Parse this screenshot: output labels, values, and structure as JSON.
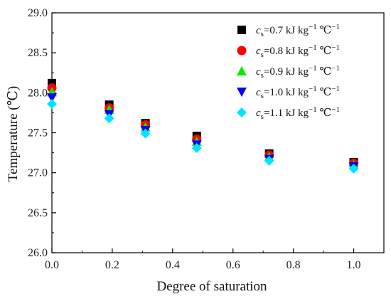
{
  "chart_data": {
    "type": "scatter",
    "title": "",
    "xlabel": "Degree of saturation",
    "ylabel": "Temperature (℃)",
    "xlim": [
      0.0,
      1.1
    ],
    "ylim": [
      26.0,
      29.0
    ],
    "x_ticks": [
      "0.0",
      "0.2",
      "0.4",
      "0.6",
      "0.8",
      "1.0"
    ],
    "y_ticks": [
      "26.0",
      "26.5",
      "27.0",
      "27.5",
      "28.0",
      "28.5",
      "29.0"
    ],
    "grid": false,
    "legend_position": "top-right",
    "series": [
      {
        "legend": {
          "var": "c",
          "sub": "s",
          "value": "=0.7 kJ kg",
          "exp": "−1",
          "unit": " ℃",
          "unit_exp": "−1"
        },
        "marker": "square",
        "color": "#000000",
        "x": [
          0.0,
          0.19,
          0.31,
          0.48,
          0.72,
          1.0
        ],
        "y": [
          28.12,
          27.85,
          27.62,
          27.46,
          27.24,
          27.13
        ]
      },
      {
        "legend": {
          "var": "c",
          "sub": "s",
          "value": "=0.8 kJ kg",
          "exp": "−1",
          "unit": " ℃",
          "unit_exp": "−1"
        },
        "marker": "circle",
        "color": "#ff0000",
        "x": [
          0.0,
          0.19,
          0.31,
          0.48,
          0.72,
          1.0
        ],
        "y": [
          28.06,
          27.81,
          27.6,
          27.42,
          27.22,
          27.12
        ]
      },
      {
        "legend": {
          "var": "c",
          "sub": "s",
          "value": "=0.9 kJ kg",
          "exp": "−1",
          "unit": " ℃",
          "unit_exp": "−1"
        },
        "marker": "triangle-up",
        "color": "#00ee00",
        "x": [
          0.0,
          0.19,
          0.31,
          0.48,
          0.72,
          1.0
        ],
        "y": [
          28.01,
          27.79,
          27.57,
          27.39,
          27.2,
          27.1
        ]
      },
      {
        "legend": {
          "var": "c",
          "sub": "s",
          "value": "=1.0 kJ kg",
          "exp": "−1",
          "unit": " ℃",
          "unit_exp": "−1"
        },
        "marker": "triangle-down",
        "color": "#0000ff",
        "x": [
          0.0,
          0.19,
          0.31,
          0.48,
          0.72,
          1.0
        ],
        "y": [
          27.94,
          27.73,
          27.53,
          27.35,
          27.17,
          27.08
        ]
      },
      {
        "legend": {
          "var": "c",
          "sub": "s",
          "value": "=1.1 kJ kg",
          "exp": "−1",
          "unit": " ℃",
          "unit_exp": "−1"
        },
        "marker": "diamond",
        "color": "#00e5ff",
        "x": [
          0.0,
          0.19,
          0.31,
          0.48,
          0.72,
          1.0
        ],
        "y": [
          27.86,
          27.68,
          27.49,
          27.31,
          27.15,
          27.05
        ]
      }
    ]
  }
}
